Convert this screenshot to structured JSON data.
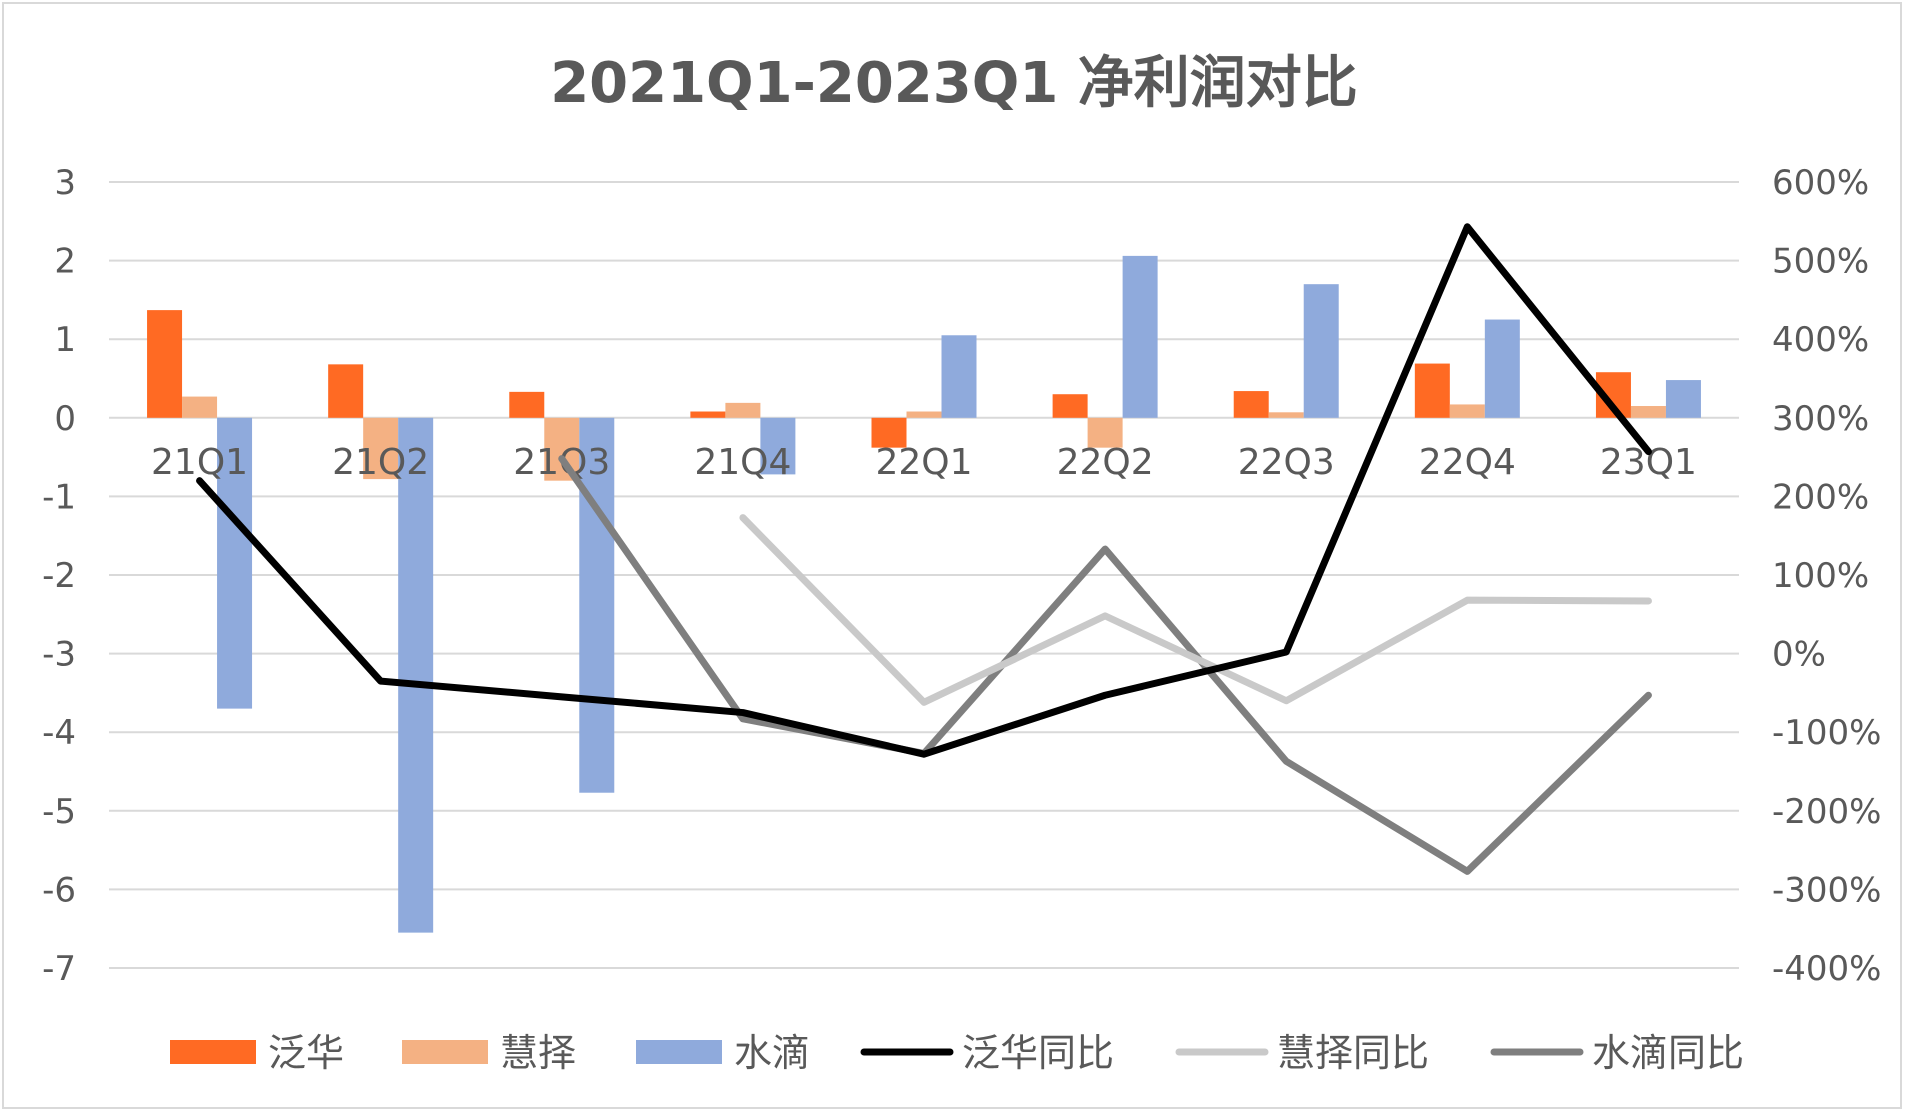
{
  "chart_data": {
    "type": "bar",
    "title": "2021Q1-2023Q1 净利润对比",
    "categories": [
      "21Q1",
      "21Q2",
      "21Q3",
      "21Q4",
      "22Q1",
      "22Q2",
      "22Q3",
      "22Q4",
      "23Q1"
    ],
    "y_left": {
      "ylim": [
        -7,
        3
      ],
      "ticks": [
        "3",
        "2",
        "1",
        "0",
        "-1",
        "-2",
        "-3",
        "-4",
        "-5",
        "-6",
        "-7"
      ]
    },
    "y_right": {
      "ylim": [
        -400,
        600
      ],
      "ticks": [
        "600%",
        "500%",
        "400%",
        "300%",
        "200%",
        "100%",
        "0%",
        "-100%",
        "-200%",
        "-300%",
        "-400%"
      ]
    },
    "grid": true,
    "legend_position": "bottom",
    "bar_series": [
      {
        "name": "泛华",
        "color": "#ff6a23",
        "values": [
          1.37,
          0.68,
          0.33,
          0.08,
          -0.38,
          0.3,
          0.34,
          0.69,
          0.58
        ]
      },
      {
        "name": "慧择",
        "color": "#f4b183",
        "values": [
          0.27,
          -0.78,
          -0.8,
          0.19,
          0.08,
          -0.38,
          0.07,
          0.17,
          0.15
        ]
      },
      {
        "name": "水滴",
        "color": "#8faadc",
        "values": [
          -3.7,
          -6.55,
          -4.77,
          -0.72,
          1.05,
          2.06,
          1.7,
          1.25,
          0.48
        ]
      }
    ],
    "line_series": [
      {
        "name": "泛华同比",
        "color": "#000000",
        "axis": "right",
        "values": [
          220,
          -35,
          -55,
          -75,
          -128,
          -53,
          2,
          543,
          257
        ]
      },
      {
        "name": "慧择同比",
        "color": "#c9c9c9",
        "axis": "right",
        "values": [
          null,
          null,
          null,
          173,
          -62,
          48,
          -60,
          68,
          67
        ]
      },
      {
        "name": "水滴同比",
        "color": "#7f7f7f",
        "axis": "right",
        "values": [
          null,
          null,
          248,
          -83,
          -127,
          133,
          -137,
          -277,
          -53
        ]
      }
    ]
  }
}
